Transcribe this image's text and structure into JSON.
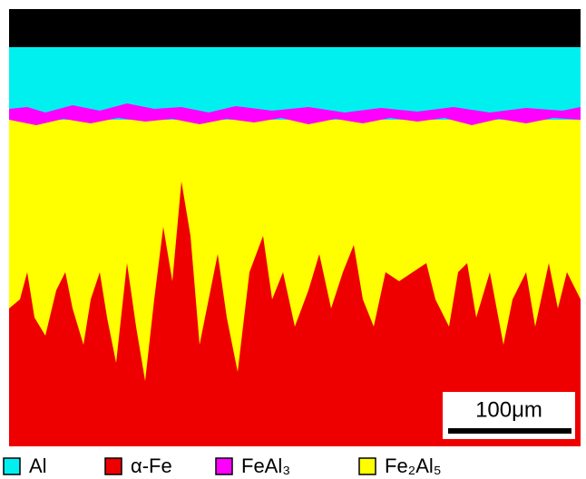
{
  "legend": {
    "items": [
      {
        "label": "Al",
        "color": "#00f0f0"
      },
      {
        "label": "α-Fe",
        "color": "#ee0000"
      },
      {
        "label": "FeAl₃",
        "color": "#ff00ff"
      },
      {
        "label": "Fe₂Al₅",
        "color": "#ffff00"
      }
    ]
  },
  "scale_bar": {
    "label": "100μm"
  }
}
